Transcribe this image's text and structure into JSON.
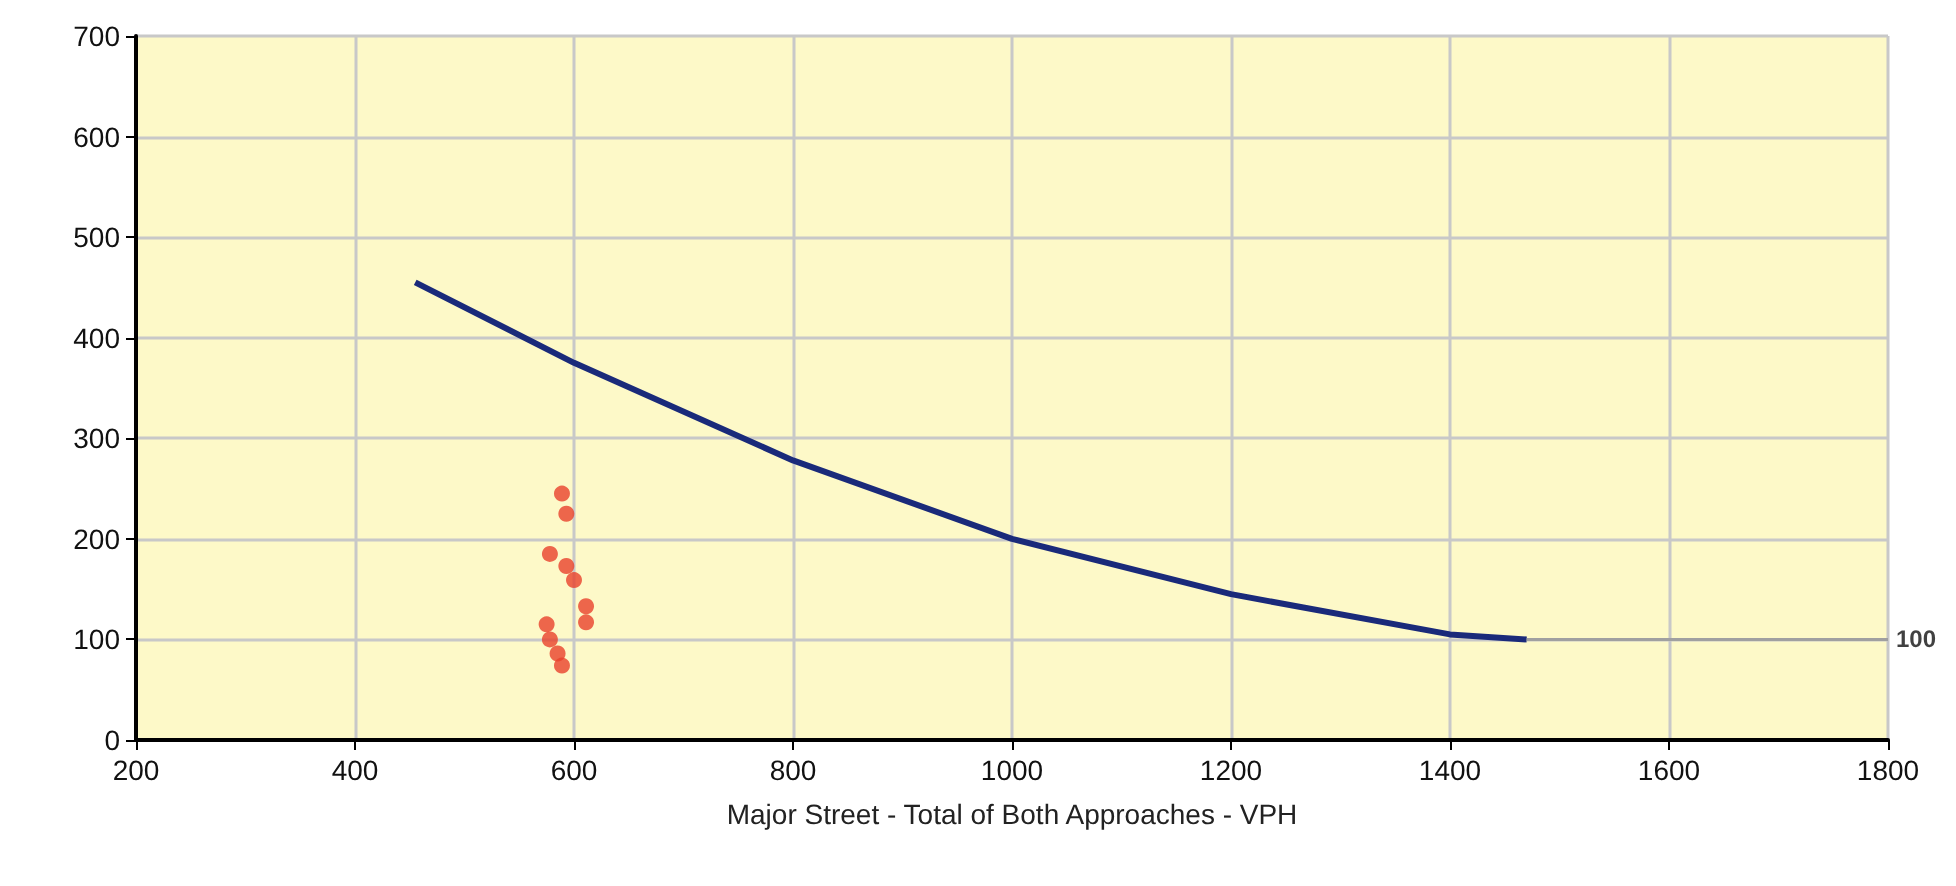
{
  "chart_data": {
    "type": "scatter",
    "xlabel": "Major Street - Total of Both Approaches - VPH",
    "xlim": [
      200,
      1800
    ],
    "xticks": [
      200,
      400,
      600,
      800,
      1000,
      1200,
      1400,
      1600,
      1800
    ],
    "ylim": [
      0,
      700
    ],
    "yticks": [
      0,
      100,
      200,
      300,
      400,
      500,
      600,
      700
    ],
    "grid": true,
    "marker": "circle",
    "series": [
      {
        "type": "line",
        "color": "#1a2a7a",
        "marker": "none",
        "x": [
          455,
          600,
          800,
          1000,
          1200,
          1400,
          1470
        ],
        "values": [
          455,
          375,
          278,
          200,
          145,
          105,
          100
        ]
      },
      {
        "type": "line",
        "color": "#a0a0a0",
        "marker": "none",
        "x": [
          1470,
          1800
        ],
        "values": [
          100,
          100
        ]
      },
      {
        "color": "#e8412c",
        "x": [
          589,
          593,
          578,
          593,
          600,
          611,
          611,
          575,
          578,
          585,
          589
        ],
        "values": [
          245,
          225,
          185,
          173,
          159,
          133,
          117,
          115,
          100,
          86,
          74
        ]
      }
    ],
    "annotations": [
      {
        "text": "100",
        "x": 1800,
        "y": 100
      }
    ]
  }
}
